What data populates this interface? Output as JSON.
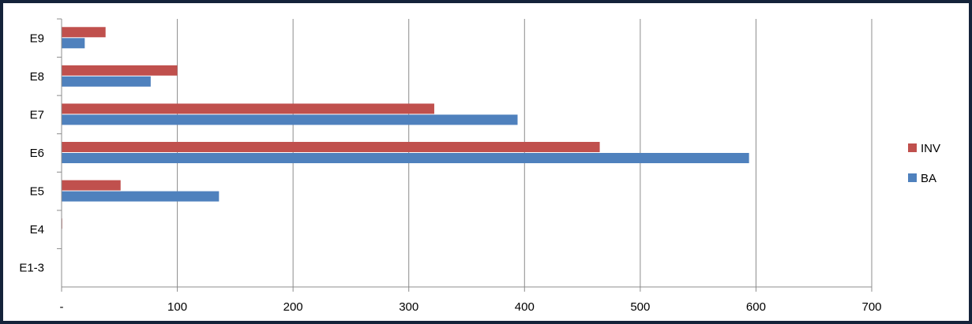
{
  "chart_data": {
    "type": "bar",
    "orientation": "horizontal",
    "categories": [
      "E1-3",
      "E4",
      "E5",
      "E6",
      "E7",
      "E8",
      "E9"
    ],
    "series": [
      {
        "name": "INV",
        "color": "#c0504d",
        "values": [
          0,
          0.5,
          51,
          465,
          322,
          100,
          38
        ]
      },
      {
        "name": "BA",
        "color": "#4f81bd",
        "values": [
          0,
          0,
          136,
          594,
          394,
          77,
          20
        ]
      }
    ],
    "xlim": [
      0,
      700
    ],
    "xticks": [
      0,
      100,
      200,
      300,
      400,
      500,
      600,
      700
    ],
    "xtick_labels": [
      "-",
      "100",
      "200",
      "300",
      "400",
      "500",
      "600",
      "700"
    ],
    "grid": true,
    "legend_position": "right"
  }
}
